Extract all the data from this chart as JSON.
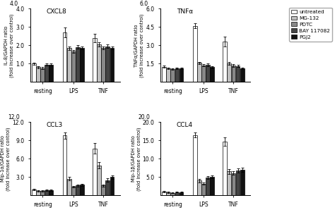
{
  "panels": [
    {
      "title": "CXCL8",
      "ylabel": "IL-8/GAPDH ratio\n(fold increase over control)",
      "ylim": [
        0,
        4.0
      ],
      "yticks": [
        1.0,
        2.0,
        3.0,
        4.0
      ],
      "ytick_top": "4.0",
      "groups": [
        "resting",
        "LPS",
        "TNF"
      ],
      "values": [
        [
          1.0,
          2.7,
          2.4
        ],
        [
          0.8,
          1.85,
          2.05
        ],
        [
          0.75,
          1.65,
          1.85
        ],
        [
          0.95,
          1.9,
          1.95
        ],
        [
          0.95,
          1.85,
          1.85
        ]
      ],
      "errors": [
        [
          0.05,
          0.28,
          0.22
        ],
        [
          0.07,
          0.1,
          0.1
        ],
        [
          0.06,
          0.08,
          0.08
        ],
        [
          0.07,
          0.1,
          0.1
        ],
        [
          0.06,
          0.07,
          0.07
        ]
      ]
    },
    {
      "title": "TNFα",
      "ylabel": "TNFα/GAPDH ratio\n(fold increase over control)",
      "ylim": [
        0,
        6.0
      ],
      "yticks": [
        1.5,
        3.0,
        4.5,
        6.0
      ],
      "ytick_top": "6.0",
      "groups": [
        "resting",
        "LPS",
        "TNF"
      ],
      "values": [
        [
          1.25,
          4.6,
          3.3
        ],
        [
          1.1,
          1.55,
          1.5
        ],
        [
          1.05,
          1.35,
          1.35
        ],
        [
          1.1,
          1.4,
          1.3
        ],
        [
          1.1,
          1.2,
          1.1
        ]
      ],
      "errors": [
        [
          0.07,
          0.22,
          0.38
        ],
        [
          0.06,
          0.1,
          0.12
        ],
        [
          0.06,
          0.08,
          0.1
        ],
        [
          0.07,
          0.09,
          0.1
        ],
        [
          0.06,
          0.07,
          0.07
        ]
      ]
    },
    {
      "title": "CCL3",
      "ylabel": "Mip-1α/GAPDH ratio\n(fold increase over control)",
      "ylim": [
        0,
        12.0
      ],
      "yticks": [
        3.0,
        6.0,
        9.0,
        12.0
      ],
      "ytick_top": "12.0",
      "groups": [
        "resting",
        "LPS",
        "TNF"
      ],
      "values": [
        [
          1.0,
          9.8,
          7.7
        ],
        [
          0.75,
          2.7,
          4.9
        ],
        [
          0.7,
          1.4,
          1.6
        ],
        [
          0.85,
          1.6,
          2.5
        ],
        [
          0.8,
          1.7,
          3.0
        ]
      ],
      "errors": [
        [
          0.12,
          0.5,
          0.85
        ],
        [
          0.1,
          0.28,
          0.5
        ],
        [
          0.08,
          0.15,
          0.15
        ],
        [
          0.1,
          0.15,
          0.25
        ],
        [
          0.1,
          0.2,
          0.28
        ]
      ]
    },
    {
      "title": "CCL4",
      "ylabel": "Mip-1β/GAPDH ratio\n(fold increase over control)",
      "ylim": [
        0,
        20.0
      ],
      "yticks": [
        5.0,
        10.0,
        15.0,
        20.0
      ],
      "ytick_top": "20.0",
      "groups": [
        "resting",
        "LPS",
        "TNF"
      ],
      "values": [
        [
          1.0,
          16.5,
          14.7
        ],
        [
          0.8,
          4.0,
          6.5
        ],
        [
          0.7,
          3.2,
          6.1
        ],
        [
          0.85,
          4.8,
          6.8
        ],
        [
          0.85,
          5.0,
          7.0
        ]
      ],
      "errors": [
        [
          0.1,
          0.7,
          1.2
        ],
        [
          0.15,
          0.4,
          0.6
        ],
        [
          0.1,
          0.3,
          0.5
        ],
        [
          0.1,
          0.4,
          0.55
        ],
        [
          0.1,
          0.4,
          0.6
        ]
      ]
    }
  ],
  "bar_colors": [
    "#ffffff",
    "#c0c0c0",
    "#888888",
    "#444444",
    "#111111"
  ],
  "bar_edgecolors": [
    "#000000",
    "#000000",
    "#000000",
    "#000000",
    "#000000"
  ],
  "legend_labels": [
    "untreated",
    "MG-132",
    "PDTC",
    "BAY 117082",
    "PGJ2"
  ],
  "group_labels": [
    "resting",
    "LPS",
    "TNF"
  ]
}
